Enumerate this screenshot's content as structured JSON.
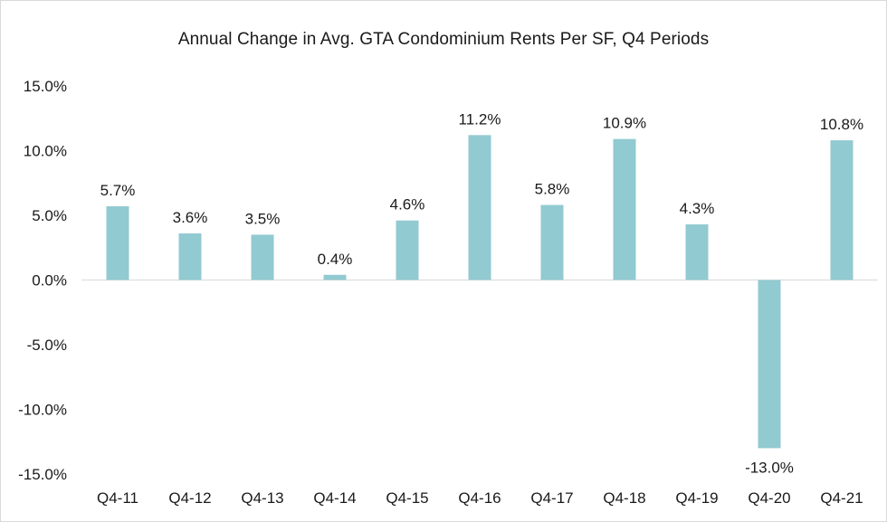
{
  "chart_data": {
    "type": "bar",
    "title": "Annual Change in Avg. GTA Condominium Rents Per SF, Q4 Periods",
    "xlabel": "",
    "ylabel": "",
    "categories": [
      "Q4-11",
      "Q4-12",
      "Q4-13",
      "Q4-14",
      "Q4-15",
      "Q4-16",
      "Q4-17",
      "Q4-18",
      "Q4-19",
      "Q4-20",
      "Q4-21"
    ],
    "values": [
      5.7,
      3.6,
      3.5,
      0.4,
      4.6,
      11.2,
      5.8,
      10.9,
      4.3,
      -13.0,
      10.8
    ],
    "data_labels": [
      "5.7%",
      "3.6%",
      "3.5%",
      "0.4%",
      "4.6%",
      "11.2%",
      "5.8%",
      "10.9%",
      "4.3%",
      "-13.0%",
      "10.8%"
    ],
    "ylim": [
      -15,
      15
    ],
    "yticks": [
      15,
      10,
      5,
      0,
      -5,
      -10,
      -15
    ],
    "ytick_labels": [
      "15.0%",
      "10.0%",
      "5.0%",
      "0.0%",
      "-5.0%",
      "-10.0%",
      "-15.0%"
    ],
    "grid": false,
    "legend": "none",
    "bar_color": "#92cad1",
    "axis_color": "#d9d9d9"
  }
}
